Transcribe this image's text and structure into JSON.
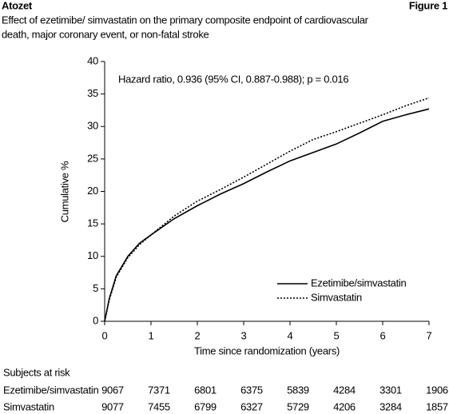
{
  "chart_data": {
    "type": "line",
    "header": "Atozet",
    "figure_label": "Figure 1",
    "title_lines": [
      "Effect of ezetimibe/ simvastatin on the primary composite endpoint of cardiovascular",
      "death, major coronary event, or non-fatal stroke"
    ],
    "annotation": "Hazard ratio, 0.936 (95% CI, 0.887-0.988); p = 0.016",
    "x_label": "Time since randomization (years)",
    "y_label": "Cumulative %",
    "x": [
      0,
      0.1,
      0.25,
      0.5,
      0.75,
      1,
      1.5,
      2,
      2.5,
      3,
      3.5,
      4,
      4.5,
      5,
      5.5,
      6,
      6.5,
      7
    ],
    "series": [
      {
        "name": "Ezetimibe/simvastatin",
        "color": "#000000",
        "dash": "solid",
        "values": [
          0,
          3.5,
          7,
          10,
          12,
          13.3,
          15.8,
          17.8,
          19.6,
          21.2,
          23,
          24.7,
          26,
          27.3,
          29,
          30.8,
          31.8,
          32.7
        ]
      },
      {
        "name": "Simvastatin",
        "color": "#000000",
        "dash": "dotted",
        "values": [
          0,
          3.3,
          6.8,
          9.8,
          11.8,
          13.3,
          16.2,
          18.5,
          20.3,
          22.2,
          24.2,
          26.2,
          28,
          29.2,
          30.5,
          31.8,
          33.2,
          34.4
        ]
      }
    ],
    "xlim": [
      0,
      7
    ],
    "xticks": [
      0,
      1,
      2,
      3,
      4,
      5,
      6,
      7
    ],
    "ylim": [
      0,
      40
    ],
    "yticks": [
      0,
      5,
      10,
      15,
      20,
      25,
      30,
      35,
      40
    ],
    "grid": false,
    "legend": "lower right",
    "risk_table": {
      "title": "Subjects at risk",
      "rows": [
        {
          "name": "Ezetimibe/simvastatin",
          "values": [
            9067,
            7371,
            6801,
            6375,
            5839,
            4284,
            3301,
            1906
          ]
        },
        {
          "name": "Simvastatin",
          "values": [
            9077,
            7455,
            6799,
            6327,
            5729,
            4206,
            3284,
            1857
          ]
        }
      ]
    }
  }
}
